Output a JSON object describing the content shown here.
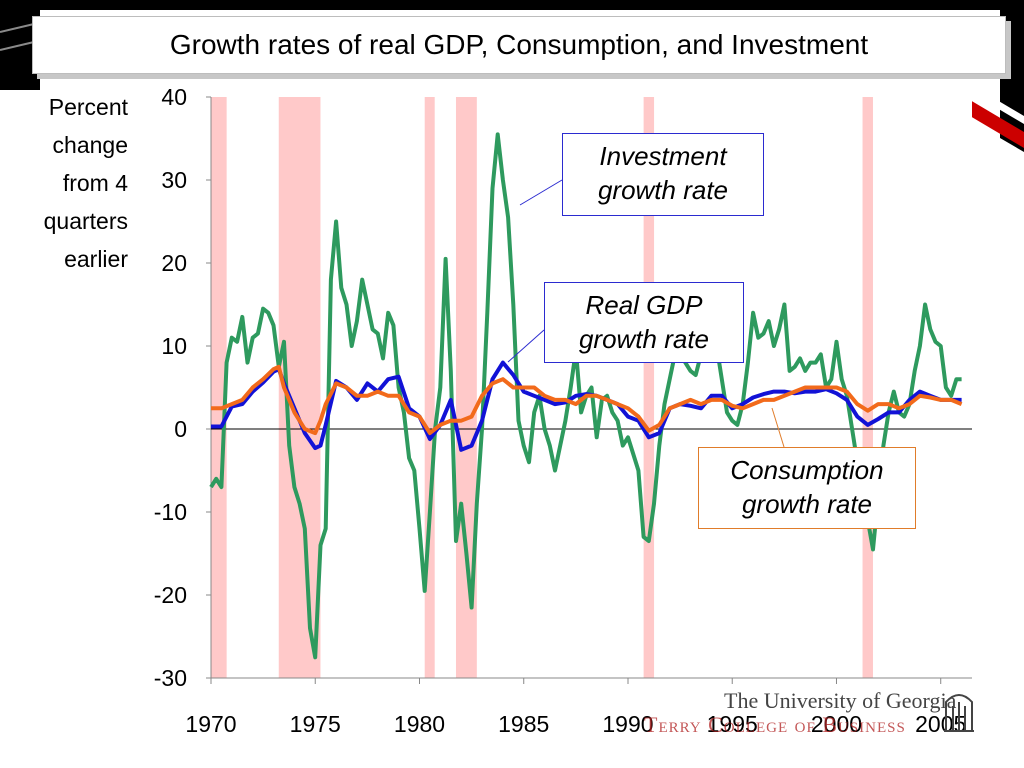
{
  "title": "Growth rates of real GDP, Consumption, and Investment",
  "colors": {
    "gdp": "#1212d6",
    "consumption": "#f26a1b",
    "investment": "#2e9a5e",
    "recession": "#ffc9c9",
    "frame_dark": "#000000",
    "frame_red": "#cc0000"
  },
  "callouts": {
    "investment": "Investment\ngrowth rate",
    "gdp": "Real GDP\ngrowth rate",
    "consumption": "Consumption\ngrowth rate"
  },
  "logo": {
    "line1": "The University of Georgia",
    "line2": "Terry College of Business",
    "icon": "arch-icon"
  },
  "chart_data": {
    "type": "line",
    "ylabel": "Percent\nchange\nfrom 4\nquarters\nearlier",
    "xlabel": "",
    "ylim": [
      -30,
      40
    ],
    "xlim": [
      1970,
      2006.5
    ],
    "yticks": [
      -30,
      -20,
      -10,
      0,
      10,
      20,
      30,
      40
    ],
    "xticks": [
      1970,
      1975,
      1980,
      1985,
      1990,
      1995,
      2000,
      2005
    ],
    "recessions": [
      [
        1970.0,
        1970.75
      ],
      [
        1973.25,
        1975.25
      ],
      [
        1980.25,
        1980.5
      ],
      [
        1981.75,
        1982.75
      ],
      [
        1990.75,
        1991.25
      ],
      [
        2001.25,
        2001.75
      ]
    ],
    "series": [
      {
        "key": "gdp",
        "points": [
          [
            1970.0,
            0.3
          ],
          [
            1970.5,
            0.3
          ],
          [
            1971.0,
            2.7
          ],
          [
            1971.5,
            3.0
          ],
          [
            1972.0,
            4.5
          ],
          [
            1972.5,
            5.6
          ],
          [
            1973.0,
            6.9
          ],
          [
            1973.25,
            7.2
          ],
          [
            1973.5,
            5.5
          ],
          [
            1974.0,
            2.5
          ],
          [
            1974.5,
            -0.5
          ],
          [
            1975.0,
            -2.3
          ],
          [
            1975.25,
            -2.0
          ],
          [
            1975.5,
            0.5
          ],
          [
            1976.0,
            5.8
          ],
          [
            1976.5,
            5.0
          ],
          [
            1977.0,
            3.5
          ],
          [
            1977.5,
            5.5
          ],
          [
            1978.0,
            4.5
          ],
          [
            1978.5,
            6.0
          ],
          [
            1979.0,
            6.3
          ],
          [
            1979.5,
            2.5
          ],
          [
            1980.0,
            1.5
          ],
          [
            1980.5,
            -1.2
          ],
          [
            1981.0,
            0.5
          ],
          [
            1981.5,
            3.5
          ],
          [
            1982.0,
            -2.5
          ],
          [
            1982.5,
            -2.0
          ],
          [
            1983.0,
            1.0
          ],
          [
            1983.5,
            6.0
          ],
          [
            1984.0,
            8.0
          ],
          [
            1984.5,
            6.5
          ],
          [
            1985.0,
            4.5
          ],
          [
            1985.5,
            4.0
          ],
          [
            1986.0,
            3.5
          ],
          [
            1986.5,
            3.0
          ],
          [
            1987.0,
            3.2
          ],
          [
            1987.5,
            4.0
          ],
          [
            1988.0,
            4.2
          ],
          [
            1988.5,
            4.0
          ],
          [
            1989.0,
            3.5
          ],
          [
            1989.5,
            3.0
          ],
          [
            1990.0,
            1.5
          ],
          [
            1990.5,
            1.0
          ],
          [
            1991.0,
            -1.0
          ],
          [
            1991.5,
            -0.5
          ],
          [
            1992.0,
            2.5
          ],
          [
            1992.5,
            3.0
          ],
          [
            1993.0,
            2.8
          ],
          [
            1993.5,
            2.5
          ],
          [
            1994.0,
            4.0
          ],
          [
            1994.5,
            4.0
          ],
          [
            1995.0,
            2.5
          ],
          [
            1995.5,
            3.0
          ],
          [
            1996.0,
            3.8
          ],
          [
            1996.5,
            4.2
          ],
          [
            1997.0,
            4.5
          ],
          [
            1997.5,
            4.5
          ],
          [
            1998.0,
            4.3
          ],
          [
            1998.5,
            4.5
          ],
          [
            1999.0,
            4.5
          ],
          [
            1999.5,
            4.8
          ],
          [
            2000.0,
            4.3
          ],
          [
            2000.5,
            3.5
          ],
          [
            2001.0,
            1.5
          ],
          [
            2001.5,
            0.5
          ],
          [
            2002.0,
            1.2
          ],
          [
            2002.5,
            2.0
          ],
          [
            2003.0,
            2.0
          ],
          [
            2003.5,
            3.5
          ],
          [
            2004.0,
            4.5
          ],
          [
            2004.5,
            4.0
          ],
          [
            2005.0,
            3.5
          ],
          [
            2005.5,
            3.5
          ],
          [
            2006.0,
            3.5
          ]
        ]
      },
      {
        "key": "consumption",
        "points": [
          [
            1970.0,
            2.5
          ],
          [
            1970.5,
            2.5
          ],
          [
            1971.0,
            3.0
          ],
          [
            1971.5,
            3.5
          ],
          [
            1972.0,
            5.0
          ],
          [
            1972.5,
            6.0
          ],
          [
            1973.0,
            7.2
          ],
          [
            1973.25,
            7.5
          ],
          [
            1973.5,
            5.0
          ],
          [
            1974.0,
            2.0
          ],
          [
            1974.5,
            0.0
          ],
          [
            1975.0,
            -0.5
          ],
          [
            1975.25,
            1.0
          ],
          [
            1975.5,
            3.0
          ],
          [
            1976.0,
            5.5
          ],
          [
            1976.5,
            5.0
          ],
          [
            1977.0,
            4.0
          ],
          [
            1977.5,
            4.0
          ],
          [
            1978.0,
            4.5
          ],
          [
            1978.5,
            4.0
          ],
          [
            1979.0,
            4.0
          ],
          [
            1979.5,
            2.0
          ],
          [
            1980.0,
            1.5
          ],
          [
            1980.5,
            -0.5
          ],
          [
            1981.0,
            0.5
          ],
          [
            1981.5,
            1.0
          ],
          [
            1982.0,
            1.0
          ],
          [
            1982.5,
            1.5
          ],
          [
            1983.0,
            4.0
          ],
          [
            1983.5,
            5.5
          ],
          [
            1984.0,
            6.0
          ],
          [
            1984.5,
            5.0
          ],
          [
            1985.0,
            5.0
          ],
          [
            1985.5,
            5.0
          ],
          [
            1986.0,
            4.0
          ],
          [
            1986.5,
            3.5
          ],
          [
            1987.0,
            3.5
          ],
          [
            1987.5,
            3.0
          ],
          [
            1988.0,
            4.0
          ],
          [
            1988.5,
            4.0
          ],
          [
            1989.0,
            3.5
          ],
          [
            1989.5,
            3.0
          ],
          [
            1990.0,
            2.5
          ],
          [
            1990.5,
            1.5
          ],
          [
            1991.0,
            -0.2
          ],
          [
            1991.5,
            0.5
          ],
          [
            1992.0,
            2.5
          ],
          [
            1992.5,
            3.0
          ],
          [
            1993.0,
            3.5
          ],
          [
            1993.5,
            3.0
          ],
          [
            1994.0,
            3.5
          ],
          [
            1994.5,
            3.5
          ],
          [
            1995.0,
            2.8
          ],
          [
            1995.5,
            2.5
          ],
          [
            1996.0,
            3.0
          ],
          [
            1996.5,
            3.5
          ],
          [
            1997.0,
            3.5
          ],
          [
            1997.5,
            4.0
          ],
          [
            1998.0,
            4.5
          ],
          [
            1998.5,
            5.0
          ],
          [
            1999.0,
            5.0
          ],
          [
            1999.5,
            5.0
          ],
          [
            2000.0,
            5.0
          ],
          [
            2000.5,
            4.5
          ],
          [
            2001.0,
            3.0
          ],
          [
            2001.5,
            2.2
          ],
          [
            2002.0,
            3.0
          ],
          [
            2002.5,
            3.0
          ],
          [
            2003.0,
            2.5
          ],
          [
            2003.5,
            3.0
          ],
          [
            2004.0,
            4.0
          ],
          [
            2004.5,
            3.8
          ],
          [
            2005.0,
            3.5
          ],
          [
            2005.5,
            3.5
          ],
          [
            2006.0,
            3.0
          ]
        ]
      },
      {
        "key": "investment",
        "points": [
          [
            1970.0,
            -7.0
          ],
          [
            1970.25,
            -6.0
          ],
          [
            1970.5,
            -7.0
          ],
          [
            1970.75,
            8.0
          ],
          [
            1971.0,
            11.0
          ],
          [
            1971.25,
            10.5
          ],
          [
            1971.5,
            13.5
          ],
          [
            1971.75,
            8.0
          ],
          [
            1972.0,
            11.0
          ],
          [
            1972.25,
            11.5
          ],
          [
            1972.5,
            14.5
          ],
          [
            1972.75,
            14.0
          ],
          [
            1973.0,
            12.5
          ],
          [
            1973.25,
            7.5
          ],
          [
            1973.5,
            10.5
          ],
          [
            1973.75,
            -2.0
          ],
          [
            1974.0,
            -7.0
          ],
          [
            1974.25,
            -9.0
          ],
          [
            1974.5,
            -12.0
          ],
          [
            1974.75,
            -24.0
          ],
          [
            1975.0,
            -27.5
          ],
          [
            1975.25,
            -14.0
          ],
          [
            1975.5,
            -12.0
          ],
          [
            1975.75,
            18.0
          ],
          [
            1976.0,
            25.0
          ],
          [
            1976.25,
            17.0
          ],
          [
            1976.5,
            15.0
          ],
          [
            1976.75,
            10.0
          ],
          [
            1977.0,
            13.0
          ],
          [
            1977.25,
            18.0
          ],
          [
            1977.5,
            15.0
          ],
          [
            1977.75,
            12.0
          ],
          [
            1978.0,
            11.5
          ],
          [
            1978.25,
            8.5
          ],
          [
            1978.5,
            14.0
          ],
          [
            1978.75,
            12.5
          ],
          [
            1979.0,
            5.0
          ],
          [
            1979.25,
            2.0
          ],
          [
            1979.5,
            -3.5
          ],
          [
            1979.75,
            -5.0
          ],
          [
            1980.0,
            -12.0
          ],
          [
            1980.25,
            -19.5
          ],
          [
            1980.5,
            -10.0
          ],
          [
            1980.75,
            0.0
          ],
          [
            1981.0,
            5.0
          ],
          [
            1981.25,
            20.5
          ],
          [
            1981.5,
            7.0
          ],
          [
            1981.75,
            -13.5
          ],
          [
            1982.0,
            -9.0
          ],
          [
            1982.25,
            -15.0
          ],
          [
            1982.5,
            -21.5
          ],
          [
            1982.75,
            -9.0
          ],
          [
            1983.0,
            0.0
          ],
          [
            1983.25,
            14.0
          ],
          [
            1983.5,
            29.0
          ],
          [
            1983.75,
            35.5
          ],
          [
            1984.0,
            30.0
          ],
          [
            1984.25,
            25.5
          ],
          [
            1984.5,
            15.0
          ],
          [
            1984.75,
            1.0
          ],
          [
            1985.0,
            -2.0
          ],
          [
            1985.25,
            -4.0
          ],
          [
            1985.5,
            2.0
          ],
          [
            1985.75,
            4.0
          ],
          [
            1986.0,
            0.0
          ],
          [
            1986.25,
            -2.0
          ],
          [
            1986.5,
            -5.0
          ],
          [
            1986.75,
            -2.0
          ],
          [
            1987.0,
            1.0
          ],
          [
            1987.25,
            5.0
          ],
          [
            1987.5,
            9.5
          ],
          [
            1987.75,
            2.0
          ],
          [
            1988.0,
            4.0
          ],
          [
            1988.25,
            5.0
          ],
          [
            1988.5,
            -1.0
          ],
          [
            1988.75,
            3.5
          ],
          [
            1989.0,
            4.0
          ],
          [
            1989.25,
            2.0
          ],
          [
            1989.5,
            1.0
          ],
          [
            1989.75,
            -2.0
          ],
          [
            1990.0,
            -1.0
          ],
          [
            1990.25,
            -3.0
          ],
          [
            1990.5,
            -5.0
          ],
          [
            1990.75,
            -13.0
          ],
          [
            1991.0,
            -13.5
          ],
          [
            1991.25,
            -9.0
          ],
          [
            1991.5,
            -2.0
          ],
          [
            1991.75,
            3.0
          ],
          [
            1992.0,
            6.0
          ],
          [
            1992.25,
            9.0
          ],
          [
            1992.5,
            11.0
          ],
          [
            1992.75,
            8.0
          ],
          [
            1993.0,
            7.0
          ],
          [
            1993.25,
            6.5
          ],
          [
            1993.5,
            9.0
          ],
          [
            1993.75,
            12.0
          ],
          [
            1994.0,
            14.0
          ],
          [
            1994.25,
            10.0
          ],
          [
            1994.5,
            6.0
          ],
          [
            1994.75,
            2.0
          ],
          [
            1995.0,
            1.0
          ],
          [
            1995.25,
            0.5
          ],
          [
            1995.5,
            3.0
          ],
          [
            1995.75,
            8.0
          ],
          [
            1996.0,
            14.0
          ],
          [
            1996.25,
            11.0
          ],
          [
            1996.5,
            11.5
          ],
          [
            1996.75,
            13.0
          ],
          [
            1997.0,
            10.0
          ],
          [
            1997.25,
            12.0
          ],
          [
            1997.5,
            15.0
          ],
          [
            1997.75,
            7.0
          ],
          [
            1998.0,
            7.5
          ],
          [
            1998.25,
            8.5
          ],
          [
            1998.5,
            7.0
          ],
          [
            1998.75,
            8.0
          ],
          [
            1999.0,
            8.0
          ],
          [
            1999.25,
            9.0
          ],
          [
            1999.5,
            5.0
          ],
          [
            1999.75,
            6.0
          ],
          [
            2000.0,
            10.5
          ],
          [
            2000.25,
            6.0
          ],
          [
            2000.5,
            4.0
          ],
          [
            2000.75,
            0.0
          ],
          [
            2001.0,
            -4.0
          ],
          [
            2001.25,
            -8.0
          ],
          [
            2001.5,
            -11.0
          ],
          [
            2001.75,
            -14.5
          ],
          [
            2002.0,
            -8.0
          ],
          [
            2002.25,
            -2.0
          ],
          [
            2002.5,
            2.0
          ],
          [
            2002.75,
            4.5
          ],
          [
            2003.0,
            2.0
          ],
          [
            2003.25,
            1.5
          ],
          [
            2003.5,
            3.0
          ],
          [
            2003.75,
            7.0
          ],
          [
            2004.0,
            10.0
          ],
          [
            2004.25,
            15.0
          ],
          [
            2004.5,
            12.0
          ],
          [
            2004.75,
            10.5
          ],
          [
            2005.0,
            10.0
          ],
          [
            2005.25,
            5.0
          ],
          [
            2005.5,
            4.0
          ],
          [
            2005.75,
            6.0
          ],
          [
            2006.0,
            6.0
          ]
        ]
      }
    ]
  }
}
